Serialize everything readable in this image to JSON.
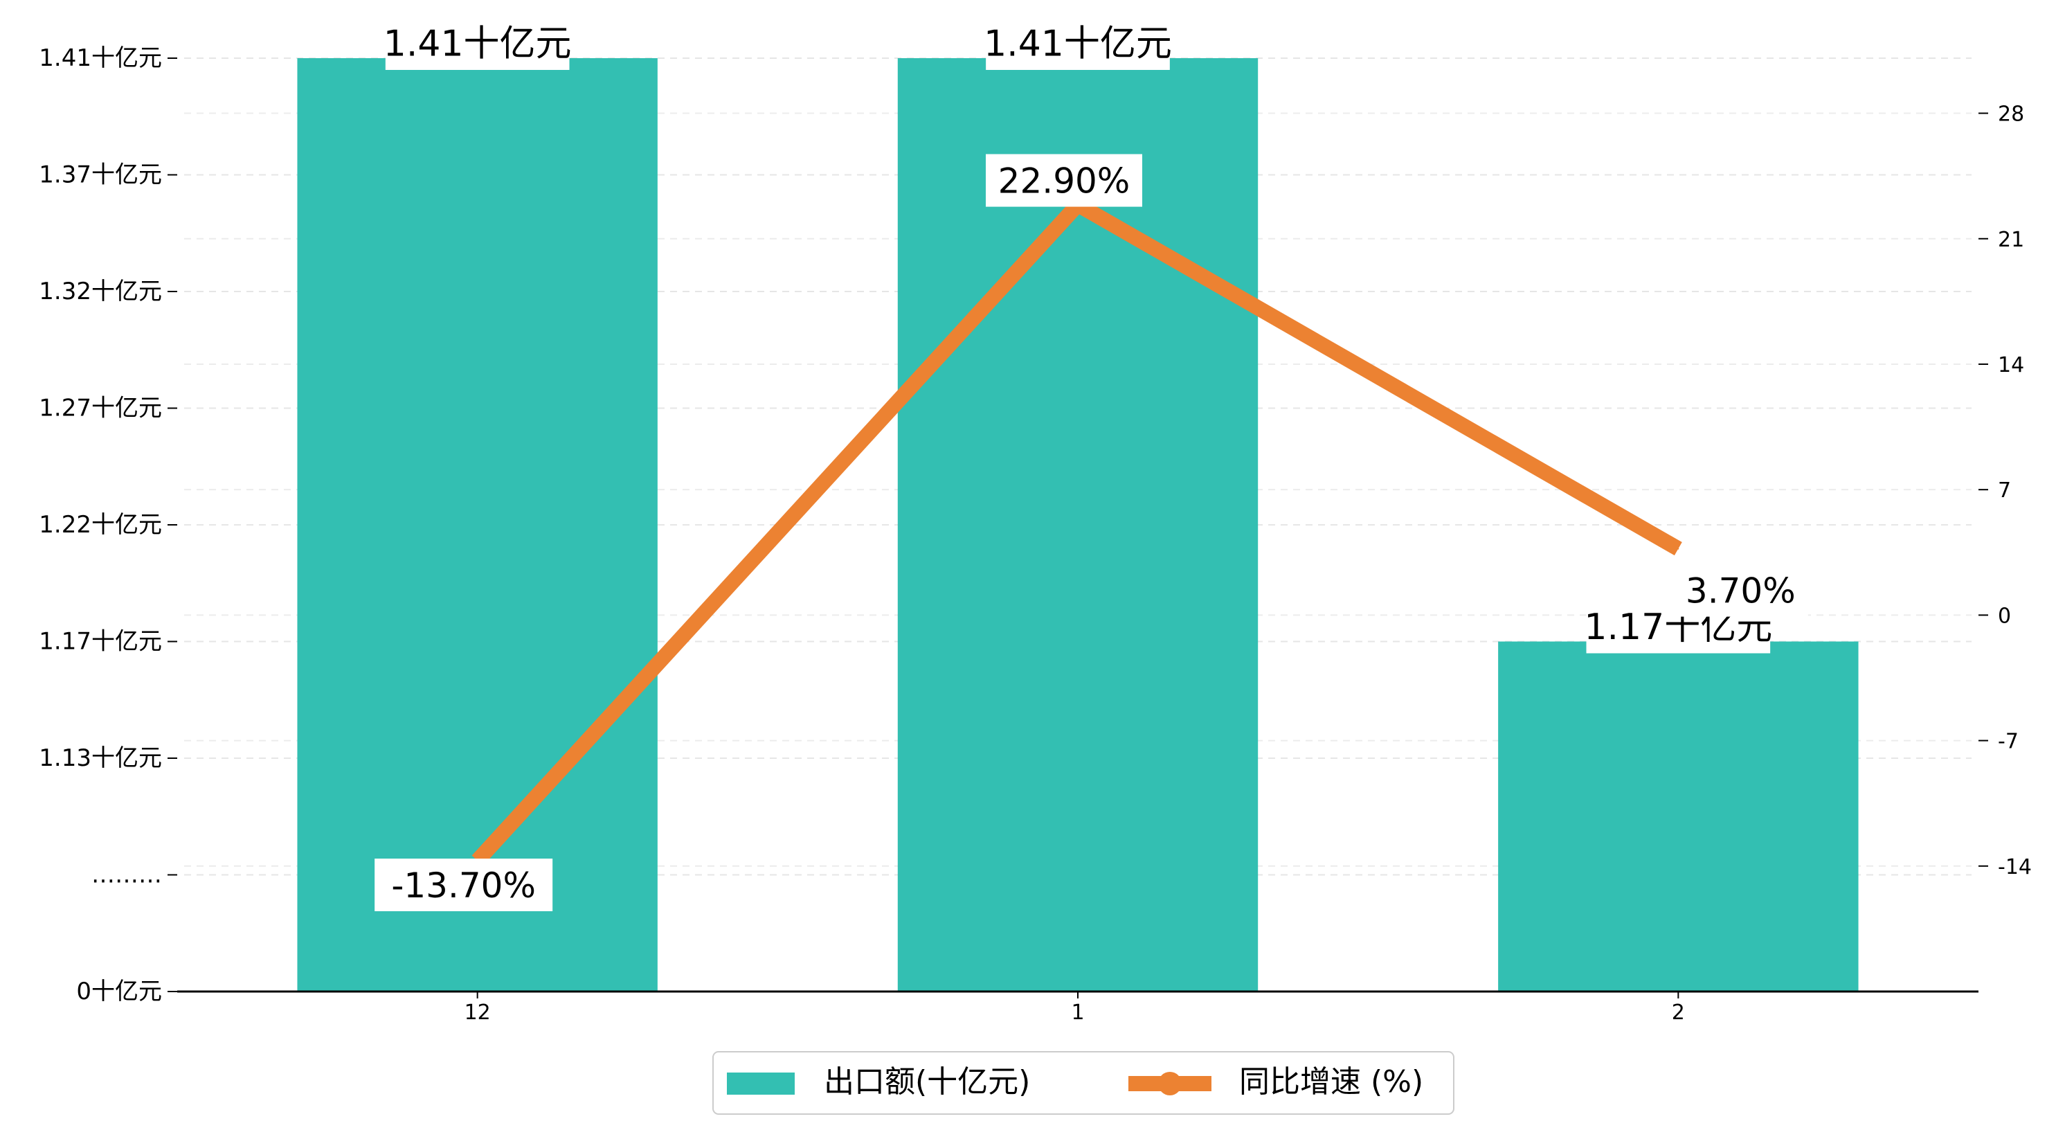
{
  "chart_data": {
    "type": "bar+line",
    "categories": [
      "12",
      "1",
      "2"
    ],
    "series": [
      {
        "name": "出口额(十亿元)",
        "type": "bar",
        "axis": "left",
        "values": [
          1.41,
          1.41,
          1.17
        ],
        "data_labels": [
          "1.41十亿元",
          "1.41十亿元",
          "1.17十亿元"
        ]
      },
      {
        "name": "同比增速 (%)",
        "type": "line",
        "axis": "right",
        "values": [
          -13.7,
          22.9,
          3.7
        ],
        "data_labels": [
          "-13.70%",
          "22.90%",
          "3.70%"
        ]
      }
    ],
    "left_axis": {
      "tick_labels": [
        "0十亿元",
        "………",
        "1.13十亿元",
        "1.17十亿元",
        "1.22十亿元",
        "1.27十亿元",
        "1.32十亿元",
        "1.37十亿元",
        "1.41十亿元"
      ],
      "tick_values": [
        0.0,
        1.08,
        1.13,
        1.17,
        1.22,
        1.27,
        1.32,
        1.37,
        1.41
      ],
      "broken_axis": true
    },
    "right_axis": {
      "ylim": [
        -21,
        32
      ],
      "ticks": [
        -14,
        -7,
        0,
        7,
        14,
        21,
        28
      ]
    },
    "legend": "bottom-center",
    "grid": "horizontal-dashed",
    "colors": {
      "bar": "#33bfb2",
      "line": "#ec8232"
    }
  }
}
